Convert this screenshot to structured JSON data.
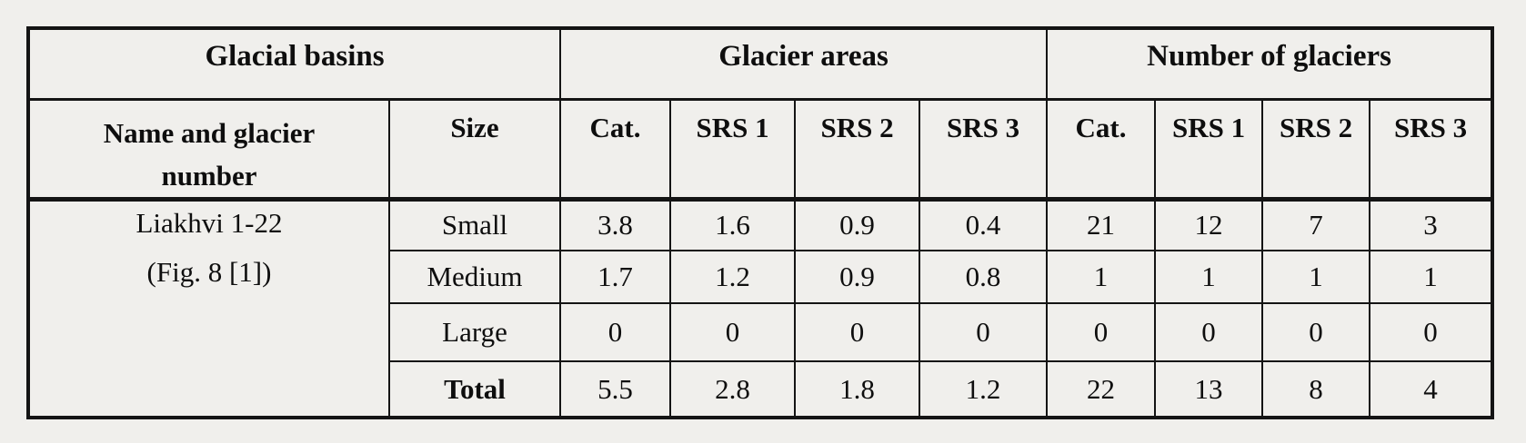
{
  "page": {
    "background_color": "#f0efec",
    "line_color": "#141414",
    "text_color": "#0e0e0e"
  },
  "table": {
    "group_headers": [
      {
        "label": "Glacial basins"
      },
      {
        "label": "Glacier areas"
      },
      {
        "label": "Number of glaciers"
      }
    ],
    "column_headers": [
      "Name and glacier number",
      "Size",
      "Cat.",
      "SRS 1",
      "SRS 2",
      "SRS 3",
      "Cat.",
      "SRS 1",
      "SRS 2",
      "SRS 3"
    ],
    "basin": {
      "name": "Liakhvi 1-22",
      "reference": "(Fig. 8 [1])"
    },
    "rows": [
      {
        "size": "Small",
        "values": [
          "3.8",
          "1.6",
          "0.9",
          "0.4",
          "21",
          "12",
          "7",
          "3"
        ]
      },
      {
        "size": "Medium",
        "values": [
          "1.7",
          "1.2",
          "0.9",
          "0.8",
          "1",
          "1",
          "1",
          "1"
        ]
      },
      {
        "size": "Large",
        "values": [
          "0",
          "0",
          "0",
          "0",
          "0",
          "0",
          "0",
          "0"
        ]
      },
      {
        "size": "Total",
        "values": [
          "5.5",
          "2.8",
          "1.8",
          "1.2",
          "22",
          "13",
          "8",
          "4"
        ]
      }
    ]
  }
}
